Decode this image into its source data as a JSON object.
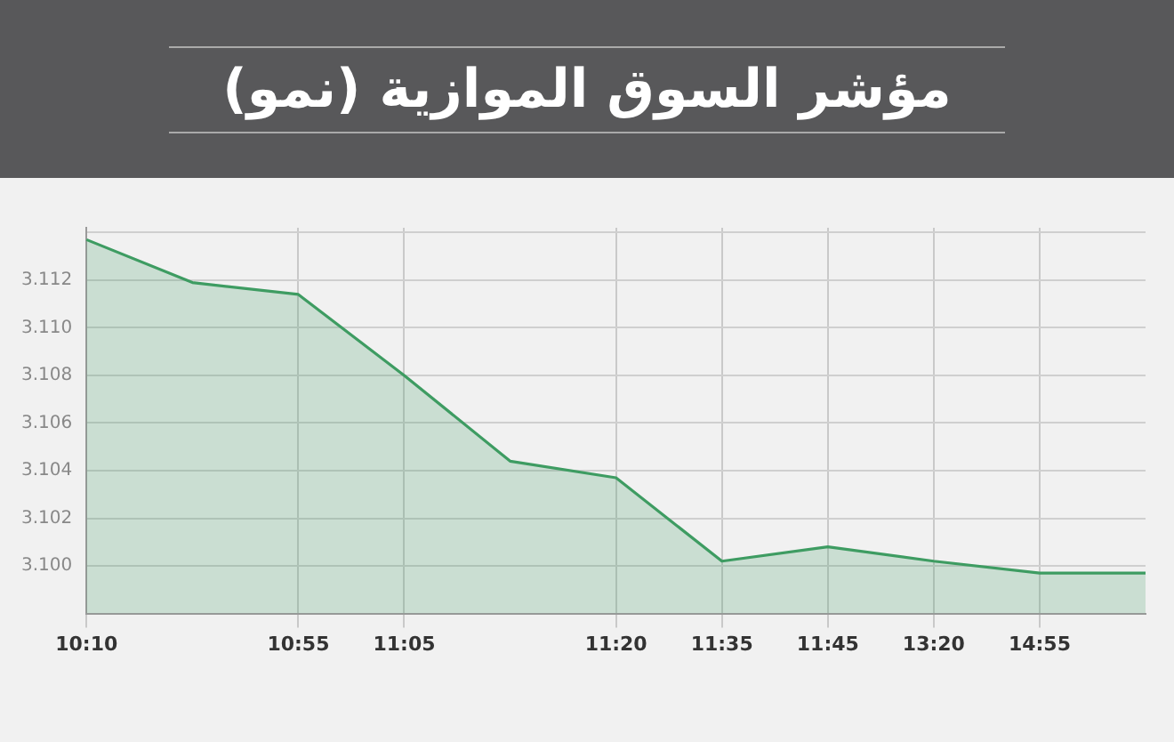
{
  "chart_data": {
    "type": "area",
    "title": "مؤشر السوق الموازية (نمو)",
    "categories": [
      "10:10",
      null,
      "10:55",
      "11:05",
      null,
      "11:20",
      "11:35",
      "11:45",
      "13:20",
      "14:55",
      null
    ],
    "series": [
      {
        "color": "#3e9c62",
        "values": [
          3.1137,
          3.1119,
          3.1114,
          3.108,
          3.1044,
          3.1037,
          3.1002,
          3.1008,
          3.1002,
          3.0997,
          3.0997
        ]
      }
    ],
    "ylim": [
      3.098,
      3.1142
    ],
    "yticks": [
      {
        "value": 3.1,
        "label": "3.100"
      },
      {
        "value": 3.102,
        "label": "3.102"
      },
      {
        "value": 3.104,
        "label": "3.104"
      },
      {
        "value": 3.106,
        "label": "3.106"
      },
      {
        "value": 3.108,
        "label": "3.108"
      },
      {
        "value": 3.11,
        "label": "3.110"
      },
      {
        "value": 3.112,
        "label": "3.112"
      },
      {
        "value": 3.114,
        "label": null
      }
    ],
    "grid": true,
    "legend": false
  }
}
